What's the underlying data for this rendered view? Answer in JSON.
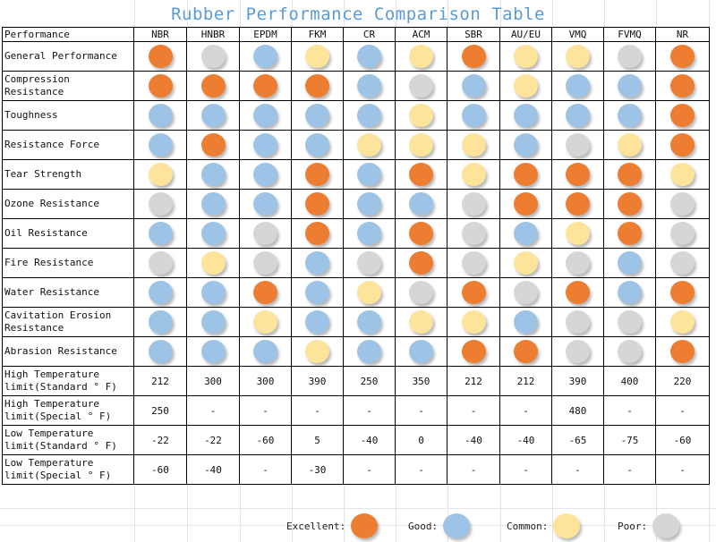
{
  "title": "Rubber Performance Comparison Table",
  "header": {
    "first": "Performance",
    "columns": [
      "NBR",
      "HNBR",
      "EPDM",
      "FKM",
      "CR",
      "ACM",
      "SBR",
      "AU/EU",
      "VMQ",
      "FVMQ",
      "NR"
    ]
  },
  "rating_colors": {
    "excellent": "#ec7d31",
    "good": "#9dc3e6",
    "common": "#fde49a",
    "poor": "#d6d6d6"
  },
  "rating_rows": [
    {
      "label": "General Performance",
      "ratings": [
        "excellent",
        "poor",
        "good",
        "common",
        "good",
        "common",
        "excellent",
        "common",
        "common",
        "poor",
        "excellent"
      ]
    },
    {
      "label": "Compression Resistance",
      "ratings": [
        "excellent",
        "excellent",
        "excellent",
        "excellent",
        "good",
        "poor",
        "good",
        "common",
        "good",
        "good",
        "excellent"
      ]
    },
    {
      "label": "Toughness",
      "ratings": [
        "good",
        "good",
        "good",
        "good",
        "good",
        "common",
        "good",
        "good",
        "good",
        "good",
        "excellent"
      ]
    },
    {
      "label": "Resistance Force",
      "ratings": [
        "good",
        "excellent",
        "good",
        "good",
        "common",
        "common",
        "common",
        "good",
        "poor",
        "common",
        "excellent"
      ]
    },
    {
      "label": "Tear Strength",
      "ratings": [
        "common",
        "good",
        "good",
        "excellent",
        "good",
        "excellent",
        "common",
        "excellent",
        "excellent",
        "excellent",
        "common"
      ]
    },
    {
      "label": "Ozone Resistance",
      "ratings": [
        "poor",
        "good",
        "good",
        "excellent",
        "good",
        "good",
        "poor",
        "excellent",
        "excellent",
        "excellent",
        "poor"
      ]
    },
    {
      "label": "Oil Resistance",
      "ratings": [
        "good",
        "good",
        "poor",
        "excellent",
        "good",
        "excellent",
        "poor",
        "good",
        "common",
        "excellent",
        "poor"
      ]
    },
    {
      "label": "Fire Resistance",
      "ratings": [
        "poor",
        "common",
        "poor",
        "good",
        "poor",
        "excellent",
        "poor",
        "common",
        "poor",
        "good",
        "poor"
      ]
    },
    {
      "label": "Water Resistance",
      "ratings": [
        "good",
        "good",
        "excellent",
        "good",
        "common",
        "poor",
        "excellent",
        "poor",
        "excellent",
        "good",
        "excellent"
      ]
    },
    {
      "label": "Cavitation Erosion Resistance",
      "ratings": [
        "good",
        "good",
        "common",
        "good",
        "good",
        "common",
        "common",
        "good",
        "poor",
        "poor",
        "common"
      ]
    },
    {
      "label": "Abrasion Resistance",
      "ratings": [
        "good",
        "good",
        "good",
        "common",
        "good",
        "good",
        "excellent",
        "excellent",
        "poor",
        "poor",
        "excellent"
      ]
    }
  ],
  "temp_rows": [
    {
      "label": "High Temperature limit(Standard ° F)",
      "values": [
        "212",
        "300",
        "300",
        "390",
        "250",
        "350",
        "212",
        "212",
        "390",
        "400",
        "220"
      ]
    },
    {
      "label": "High Temperature limit(Special ° F)",
      "values": [
        "250",
        "-",
        "-",
        "-",
        "-",
        "-",
        "-",
        "-",
        "480",
        "-",
        "-"
      ]
    },
    {
      "label": "Low Temperature limit(Standard ° F)",
      "values": [
        "-22",
        "-22",
        "-60",
        "5",
        "-40",
        "0",
        "-40",
        "-40",
        "-65",
        "-75",
        "-60"
      ]
    },
    {
      "label": "Low Temperature limit(Special ° F)",
      "values": [
        "-60",
        "-40",
        "-",
        "-30",
        "-",
        "-",
        "-",
        "-",
        "-",
        "-",
        "-"
      ]
    }
  ],
  "legend": [
    {
      "label": "Excellent:",
      "rating": "excellent"
    },
    {
      "label": "Good:",
      "rating": "good"
    },
    {
      "label": "Common:",
      "rating": "common"
    },
    {
      "label": "Poor:",
      "rating": "poor"
    }
  ]
}
